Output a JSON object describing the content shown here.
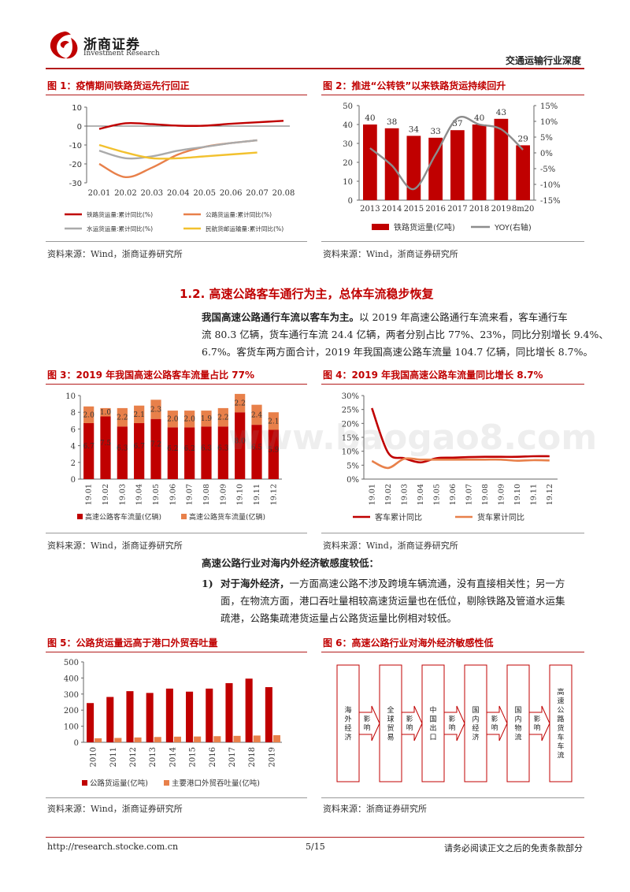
{
  "header": {
    "logo_cn": "浙商证券",
    "logo_en": "Investment Research",
    "category": "交通运输行业深度"
  },
  "fig1": {
    "title": "图 1：疫情期间铁路货运先行回正",
    "source": "资料来源：Wind，浙商证券研究所",
    "chart_data": {
      "type": "line",
      "x": [
        "20.01",
        "20.02",
        "20.03",
        "20.04",
        "20.05",
        "20.06",
        "20.07",
        "20.08"
      ],
      "ylim": [
        -30,
        10
      ],
      "yticks": [
        "10",
        "0",
        "-10",
        "-20",
        "-30"
      ],
      "series": [
        {
          "name": "铁路货运量:累计同比(%)",
          "color": "#c00000",
          "values": [
            -1.5,
            1.5,
            1.0,
            0.2,
            0.2,
            1.2,
            2.0,
            2.8
          ]
        },
        {
          "name": "公路货运量:累计同比(%)",
          "color": "#e8804a",
          "values": [
            -20,
            -27,
            -22,
            -15,
            -11,
            -9,
            -7.5,
            null
          ]
        },
        {
          "name": "水运货运量:累计同比(%)",
          "color": "#aaaaaa",
          "values": [
            -13,
            -17,
            -16,
            -13,
            -11,
            -9,
            -7.5,
            null
          ]
        },
        {
          "name": "民航货邮运输量:累计同比(%)",
          "color": "#f2c12e",
          "values": [
            -10,
            -14,
            -17,
            -17,
            -16,
            -15,
            -14,
            null
          ]
        }
      ]
    }
  },
  "fig2": {
    "title": "图 2：推进“公转铁”以来铁路货运持续回升",
    "source": "资料来源：Wind，浙商证券研究所",
    "chart_data": {
      "type": "bar",
      "categories": [
        "2013",
        "2014",
        "2015",
        "2016",
        "2017",
        "2018",
        "2019",
        "8m20"
      ],
      "values": [
        40,
        38,
        34,
        33,
        37,
        40,
        43,
        29
      ],
      "value_labels": [
        "40",
        "38",
        "34",
        "33",
        "37",
        "40",
        "43",
        "29"
      ],
      "ylim": [
        0,
        50
      ],
      "yticks": [
        "50",
        "40",
        "30",
        "20",
        "10",
        "0"
      ],
      "y2lim": [
        -15,
        15
      ],
      "y2ticks": [
        "15%",
        "10%",
        "5%",
        "0%",
        "-5%",
        "-10%",
        "-15%"
      ],
      "series": [
        {
          "name": "铁路货运量(亿吨)",
          "color": "#c00000",
          "values": [
            40,
            38,
            34,
            33,
            37,
            40,
            43,
            29
          ]
        },
        {
          "name": "YOY(右轴)",
          "color": "#8c8c8c",
          "values": [
            1.5,
            -4,
            -11.5,
            -0.5,
            11,
            9,
            7.5,
            1
          ]
        }
      ]
    }
  },
  "section": {
    "heading": "1.2. 高速公路客车通行为主，总体车流稳步恢复",
    "para_bold": "我国高速公路通行车流以客车为主。",
    "para_rest": "以 2019 年高速公路通行车流来看，客车通行车",
    "para_line2": "流 80.3 亿辆，货车通行车流 24.4 亿辆，两者分别占比 77%、23%，同比分别增长 9.4%、",
    "para_line3": "6.7%。客货车两方面合计，2019 年我国高速公路车流量 104.7 亿辆，同比增长 8.7%。"
  },
  "fig3": {
    "title": "图 3：2019 年我国高速公路客车流量占比 77%",
    "source": "资料来源：Wind，浙商证券研究所",
    "chart_data": {
      "type": "bar",
      "stacked": true,
      "categories": [
        "19.01",
        "19.02",
        "19.03",
        "19.04",
        "19.05",
        "19.06",
        "19.07",
        "19.08",
        "19.09",
        "19.10",
        "19.11",
        "19.12"
      ],
      "ylim": [
        0,
        10
      ],
      "yticks": [
        "10",
        "8",
        "6",
        "4",
        "2",
        "0"
      ],
      "series": [
        {
          "name": "高速公路客车流量(亿辆)",
          "color": "#c00000",
          "values": [
            6.7,
            7.5,
            6.3,
            6.7,
            7.2,
            6.2,
            6.2,
            6.3,
            6.3,
            8.0,
            6.5,
            5.9
          ],
          "labels": [
            "6.7",
            "7.5",
            "6.3",
            "6.7",
            "7.2",
            "6.2",
            "6.2",
            "6.3",
            "6.3",
            "8.0",
            "6.5",
            "5.9"
          ]
        },
        {
          "name": "高速公路货车流量(亿辆)",
          "color": "#e8804a",
          "values": [
            2.0,
            1.0,
            2.2,
            2.1,
            2.3,
            2.0,
            2.0,
            1.9,
            2.2,
            2.2,
            2.4,
            2.1
          ],
          "labels": [
            "2.0",
            "1.0",
            "2.2",
            "2.1",
            "2.3",
            "2.0",
            "2.0",
            "1.9",
            "2.2",
            "2.2",
            "2.4",
            "2.1"
          ]
        }
      ]
    }
  },
  "fig4": {
    "title": "图 4：2019 年我国高速公路车流量同比增长 8.7%",
    "source": "资料来源：Wind，浙商证券研究所",
    "chart_data": {
      "type": "line",
      "x": [
        "19.01",
        "19.02",
        "19.03",
        "19.04",
        "19.05",
        "19.06",
        "19.07",
        "19.08",
        "19.09",
        "19.10",
        "19.11",
        "19.12"
      ],
      "ylim": [
        0,
        30
      ],
      "yticks": [
        "30%",
        "25%",
        "20%",
        "15%",
        "10%",
        "5%",
        "0%"
      ],
      "series": [
        {
          "name": "客车累计同比",
          "color": "#c00000",
          "values": [
            25.5,
            9.5,
            7.5,
            6.0,
            7.5,
            7.7,
            7.9,
            8.0,
            8.0,
            8.0,
            8.2,
            8.2
          ]
        },
        {
          "name": "货车累计同比",
          "color": "#e8804a",
          "values": [
            6.5,
            4.0,
            7.3,
            7.0,
            7.0,
            7.0,
            7.0,
            7.0,
            7.0,
            6.6,
            6.8,
            6.7
          ]
        }
      ]
    }
  },
  "sensitivity": {
    "heading": "高速公路行业对海内外经济敏感度较低：",
    "item_num": "1)",
    "item_bold": "对于海外经济，",
    "item_rest": "一方面高速公路不涉及跨境车辆流通，没有直接相关性；另一方",
    "item_line2": "面，在物流方面，港口吞吐量相较高速货运量也在低位，剔除铁路及管道水运集",
    "item_line3": "疏港，公路集疏港货运量占公路货运量比例相对较低。"
  },
  "fig5": {
    "title": "图 5：公路货运量远高于港口外贸吞吐量",
    "source": "资料来源：Wind，浙商证券研究所",
    "chart_data": {
      "type": "bar",
      "categories": [
        "2010",
        "2011",
        "2012",
        "2013",
        "2014",
        "2015",
        "2016",
        "2017",
        "2018",
        "2019"
      ],
      "ylim": [
        0,
        500
      ],
      "yticks": [
        "500",
        "400",
        "300",
        "200",
        "100",
        "0"
      ],
      "series": [
        {
          "name": "公路货运量(亿吨)",
          "color": "#c00000",
          "values": [
            244,
            282,
            318,
            307,
            334,
            315,
            334,
            368,
            396,
            343
          ]
        },
        {
          "name": "主要港口外贸吞吐量(亿吨)",
          "color": "#e8804a",
          "values": [
            25,
            27,
            30,
            33,
            35,
            36,
            38,
            40,
            42,
            44
          ]
        }
      ]
    }
  },
  "fig6": {
    "title": "图 6：高速公路行业对海外经济敏感性低",
    "source": "资料来源：浙商证券研究所",
    "boxes": [
      "海外经济",
      "全球贸易",
      "中国出口",
      "国内经济",
      "国内物流",
      "高速公路货车车流"
    ],
    "arrows": [
      "影响",
      "影响",
      "影响",
      "影响",
      "影响"
    ]
  },
  "footer": {
    "url": "http://research.stocke.com.cn",
    "page": "5/15",
    "disclaimer": "请务必阅读正文之后的免责条款部分"
  },
  "watermark": "www.baogao8.com"
}
